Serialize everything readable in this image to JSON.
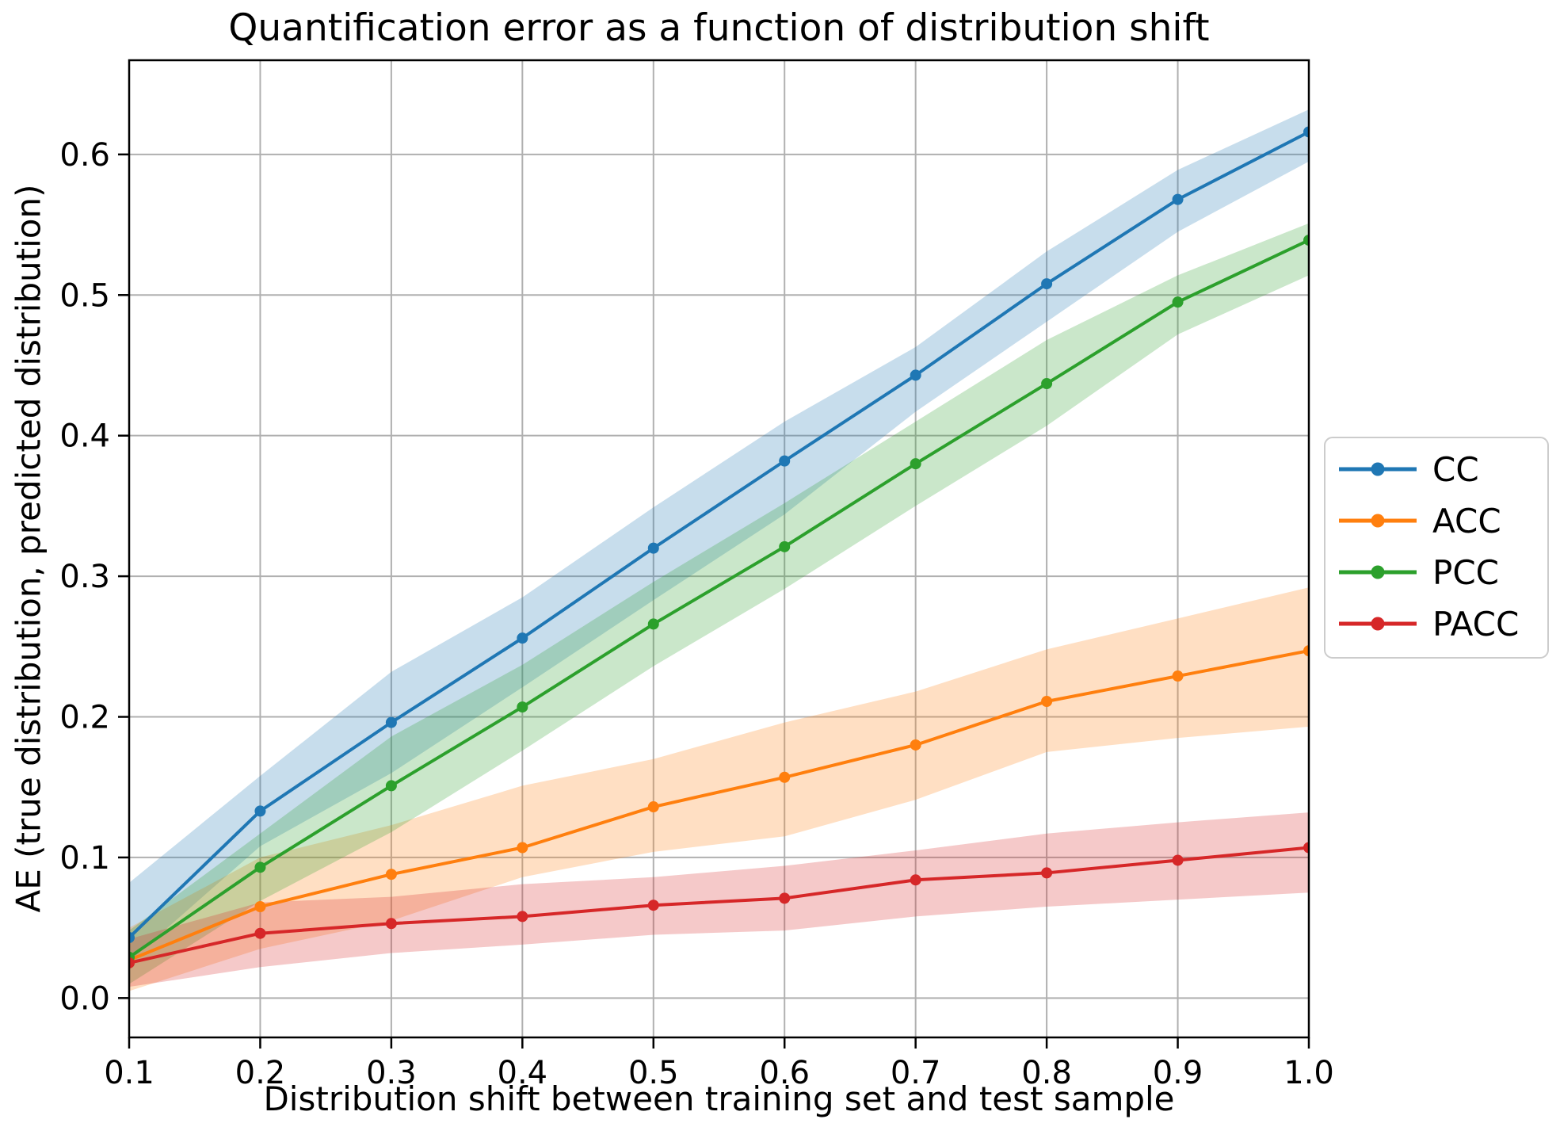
{
  "chart_data": {
    "type": "line",
    "title": "Quantification error as a function of distribution shift",
    "xlabel": "Distribution shift between training set and test sample",
    "ylabel": "AE (true distribution, predicted distribution)",
    "x": [
      0.1,
      0.2,
      0.3,
      0.4,
      0.5,
      0.6,
      0.7,
      0.8,
      0.9,
      1.0
    ],
    "xtick_labels": [
      "0.1",
      "0.2",
      "0.3",
      "0.4",
      "0.5",
      "0.6",
      "0.7",
      "0.8",
      "0.9",
      "1.0"
    ],
    "ytick_values": [
      0.0,
      0.1,
      0.2,
      0.3,
      0.4,
      0.5,
      0.6
    ],
    "ytick_labels": [
      "0.0",
      "0.1",
      "0.2",
      "0.3",
      "0.4",
      "0.5",
      "0.6"
    ],
    "xlim": [
      0.1,
      1.0
    ],
    "ylim": [
      -0.028,
      0.667
    ],
    "grid": true,
    "legend_position": "outside-right",
    "series": [
      {
        "name": "CC",
        "color": "#1f77b4",
        "values": [
          0.043,
          0.133,
          0.196,
          0.256,
          0.32,
          0.382,
          0.443,
          0.508,
          0.568,
          0.616
        ],
        "band_lower": [
          0.026,
          0.108,
          0.16,
          0.221,
          0.283,
          0.344,
          0.417,
          0.481,
          0.545,
          0.595
        ],
        "band_upper": [
          0.082,
          0.158,
          0.232,
          0.285,
          0.349,
          0.41,
          0.463,
          0.531,
          0.589,
          0.632
        ]
      },
      {
        "name": "ACC",
        "color": "#ff7f0e",
        "values": [
          0.027,
          0.065,
          0.088,
          0.107,
          0.136,
          0.157,
          0.18,
          0.211,
          0.229,
          0.247
        ],
        "band_lower": [
          0.005,
          0.035,
          0.055,
          0.086,
          0.104,
          0.115,
          0.141,
          0.175,
          0.185,
          0.193
        ],
        "band_upper": [
          0.05,
          0.1,
          0.123,
          0.151,
          0.17,
          0.196,
          0.218,
          0.248,
          0.27,
          0.292
        ]
      },
      {
        "name": "PCC",
        "color": "#2ca02c",
        "values": [
          0.029,
          0.093,
          0.151,
          0.207,
          0.266,
          0.321,
          0.38,
          0.437,
          0.495,
          0.539
        ],
        "band_lower": [
          0.01,
          0.069,
          0.118,
          0.176,
          0.236,
          0.291,
          0.35,
          0.407,
          0.472,
          0.514
        ],
        "band_upper": [
          0.048,
          0.117,
          0.186,
          0.237,
          0.296,
          0.352,
          0.41,
          0.468,
          0.514,
          0.551
        ]
      },
      {
        "name": "PACC",
        "color": "#d62728",
        "values": [
          0.025,
          0.046,
          0.053,
          0.058,
          0.066,
          0.071,
          0.084,
          0.089,
          0.098,
          0.107
        ],
        "band_lower": [
          0.008,
          0.022,
          0.032,
          0.038,
          0.045,
          0.048,
          0.058,
          0.065,
          0.07,
          0.075
        ],
        "band_upper": [
          0.042,
          0.068,
          0.072,
          0.081,
          0.086,
          0.094,
          0.105,
          0.117,
          0.125,
          0.132
        ]
      }
    ]
  }
}
